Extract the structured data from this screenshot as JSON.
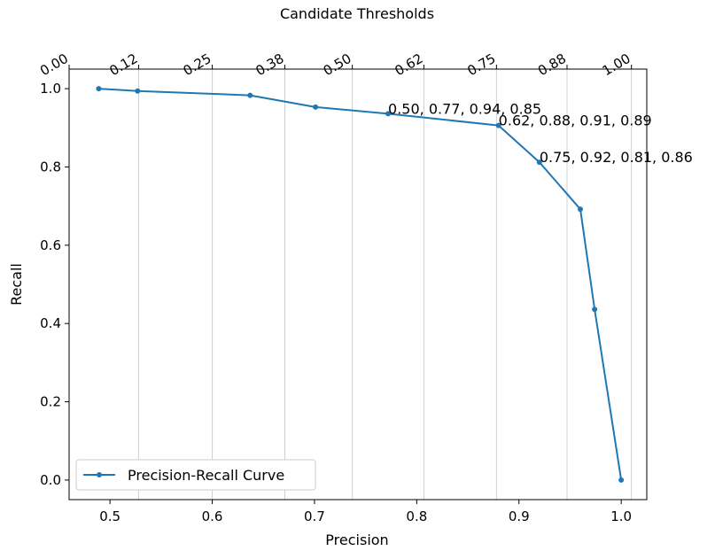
{
  "chart_data": {
    "type": "line",
    "title": "",
    "xlabel": "Precision",
    "ylabel": "Recall",
    "top_xlabel": "Candidate Thresholds",
    "xlim": [
      0.46,
      1.025
    ],
    "ylim": [
      -0.05,
      1.05
    ],
    "x_ticks": [
      0.5,
      0.6,
      0.7,
      0.8,
      0.9,
      1.0
    ],
    "x_tick_labels": [
      "0.5",
      "0.6",
      "0.7",
      "0.8",
      "0.9",
      "1.0"
    ],
    "y_ticks": [
      0.0,
      0.2,
      0.4,
      0.6,
      0.8,
      1.0
    ],
    "y_tick_labels": [
      "0.0",
      "0.2",
      "0.4",
      "0.6",
      "0.8",
      "1.0"
    ],
    "top_ticks": [
      0.528,
      0.6,
      0.671,
      0.737,
      0.807,
      0.878,
      0.947,
      1.01
    ],
    "top_tick_labels": [
      "0.00",
      "0.12",
      "0.25",
      "0.38",
      "0.50",
      "0.62",
      "0.75",
      "0.88",
      "1.00"
    ],
    "top_tick_label_positions": [
      0.46,
      0.528,
      0.6,
      0.671,
      0.737,
      0.807,
      0.878,
      0.947,
      1.01
    ],
    "grid": "vertical lines at top-axis ticks",
    "legend_position": "lower-left",
    "series": [
      {
        "name": "Precision-Recall Curve",
        "color": "#1f77b4",
        "x": [
          0.489,
          0.527,
          0.637,
          0.701,
          0.772,
          0.88,
          0.92,
          0.96,
          0.974,
          1.0
        ],
        "y": [
          1.0,
          0.994,
          0.983,
          0.953,
          0.936,
          0.906,
          0.812,
          0.692,
          0.436,
          0.0
        ]
      }
    ],
    "annotations": [
      {
        "x": 0.772,
        "y": 0.936,
        "text": "0.50, 0.77, 0.94, 0.85"
      },
      {
        "x": 0.88,
        "y": 0.906,
        "text": "0.62, 0.88, 0.91, 0.89"
      },
      {
        "x": 0.92,
        "y": 0.812,
        "text": "0.75, 0.92, 0.81, 0.86"
      }
    ]
  }
}
